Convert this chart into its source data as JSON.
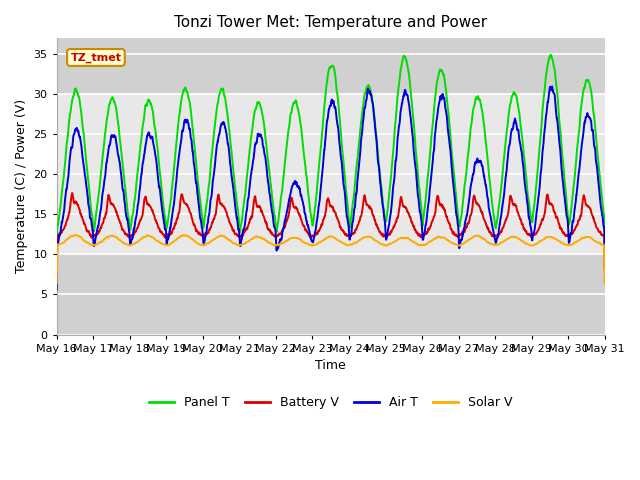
{
  "title": "Tonzi Tower Met: Temperature and Power",
  "xlabel": "Time",
  "ylabel": "Temperature (C) / Power (V)",
  "ylim": [
    0,
    37
  ],
  "yticks": [
    0,
    5,
    10,
    15,
    20,
    25,
    30,
    35
  ],
  "legend_labels": [
    "Panel T",
    "Battery V",
    "Air T",
    "Solar V"
  ],
  "legend_colors": [
    "#00dd00",
    "#dd0000",
    "#0000dd",
    "#ffaa00"
  ],
  "annotation_text": "TZ_tmet",
  "annotation_bg": "#ffffcc",
  "annotation_border": "#cc8800",
  "annotation_text_color": "#cc0000",
  "fig_bg_color": "#ffffff",
  "plot_bg_color": "#e8e8e8",
  "band_bg_color": "#d0d0d0",
  "grid_color": "#f0f0f0",
  "xmin": 16,
  "xmax": 31,
  "xtick_labels": [
    "May 16",
    "May 17",
    "May 18",
    "May 19",
    "May 20",
    "May 21",
    "May 22",
    "May 23",
    "May 24",
    "May 25",
    "May 26",
    "May 27",
    "May 28",
    "May 29",
    "May 30",
    "May 31"
  ]
}
